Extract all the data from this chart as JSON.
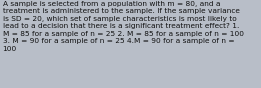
{
  "text": "A sample is selected from a population with m = 80, and a\ntreatment is administered to the sample. If the sample variance\nis SD = 20, which set of sample characteristics is most likely to\nlead to a decision that there is a significant treatment effect? 1.\nM = 85 for a sample of n = 25 2. M = 85 for a sample of n = 100\n3. M = 90 for a sample of n = 25 4.M = 90 for a sample of n =\n100",
  "background_color": "#b8bec8",
  "text_color": "#111111",
  "font_size": 5.3,
  "fig_width": 2.61,
  "fig_height": 0.88,
  "dpi": 100
}
